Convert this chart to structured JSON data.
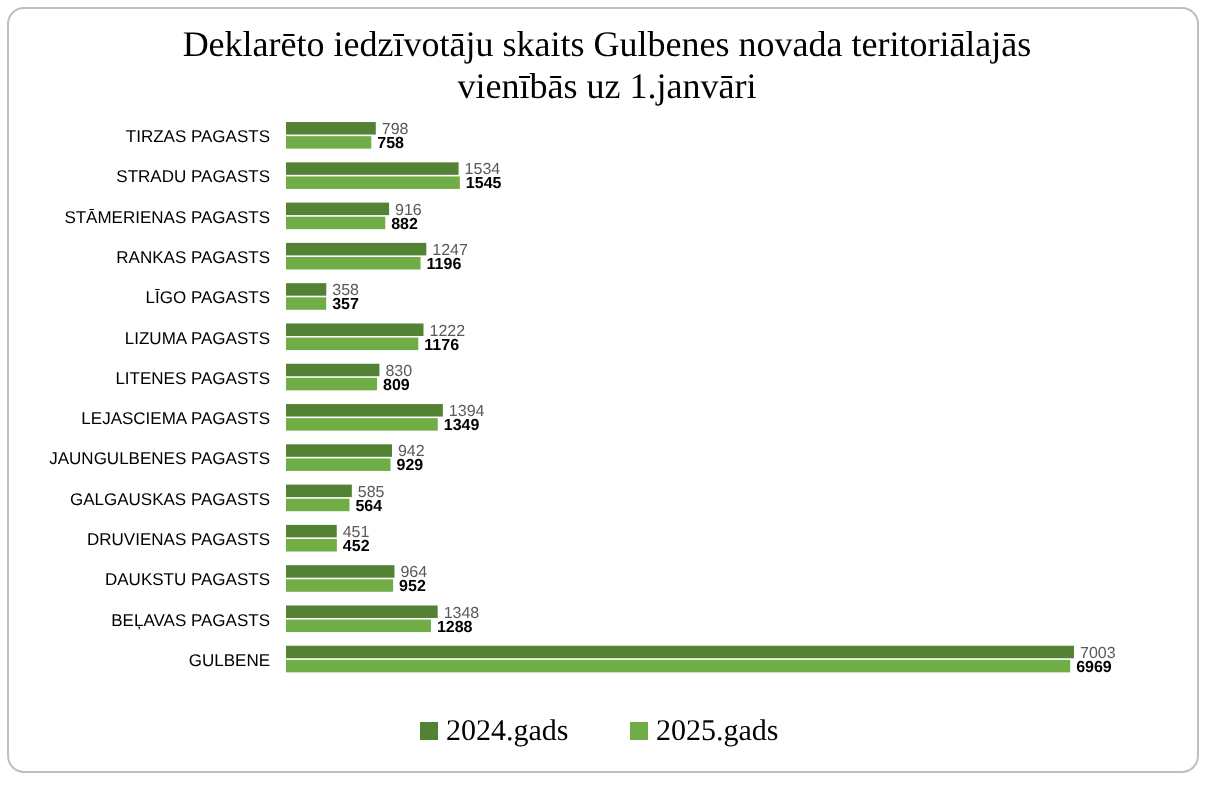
{
  "chart_data": {
    "type": "bar",
    "orientation": "horizontal",
    "title": "Deklarēto iedzīvotāju skaits Gulbenes novada teritoriālajās vienībās uz 1.janvāri",
    "categories": [
      "TIRZAS PAGASTS",
      "STRADU PAGASTS",
      "STĀMERIENAS PAGASTS",
      "RANKAS PAGASTS",
      "LĪGO PAGASTS",
      "LIZUMA PAGASTS",
      "LITENES PAGASTS",
      "LEJASCIEMA PAGASTS",
      "JAUNGULBENES PAGASTS",
      "GALGAUSKAS PAGASTS",
      "DRUVIENAS PAGASTS",
      "DAUKSTU PAGASTS",
      "BEĻAVAS PAGASTS",
      "GULBENE"
    ],
    "series": [
      {
        "name": "2024.gads",
        "color": "#548235",
        "values": [
          798,
          1534,
          916,
          1247,
          358,
          1222,
          830,
          1394,
          942,
          585,
          451,
          964,
          1348,
          7003
        ]
      },
      {
        "name": "2025.gads",
        "color": "#70ad47",
        "values": [
          758,
          1545,
          882,
          1196,
          357,
          1176,
          809,
          1349,
          929,
          564,
          452,
          952,
          1288,
          6969
        ]
      }
    ],
    "data_labels": true,
    "legend": "bottom"
  }
}
